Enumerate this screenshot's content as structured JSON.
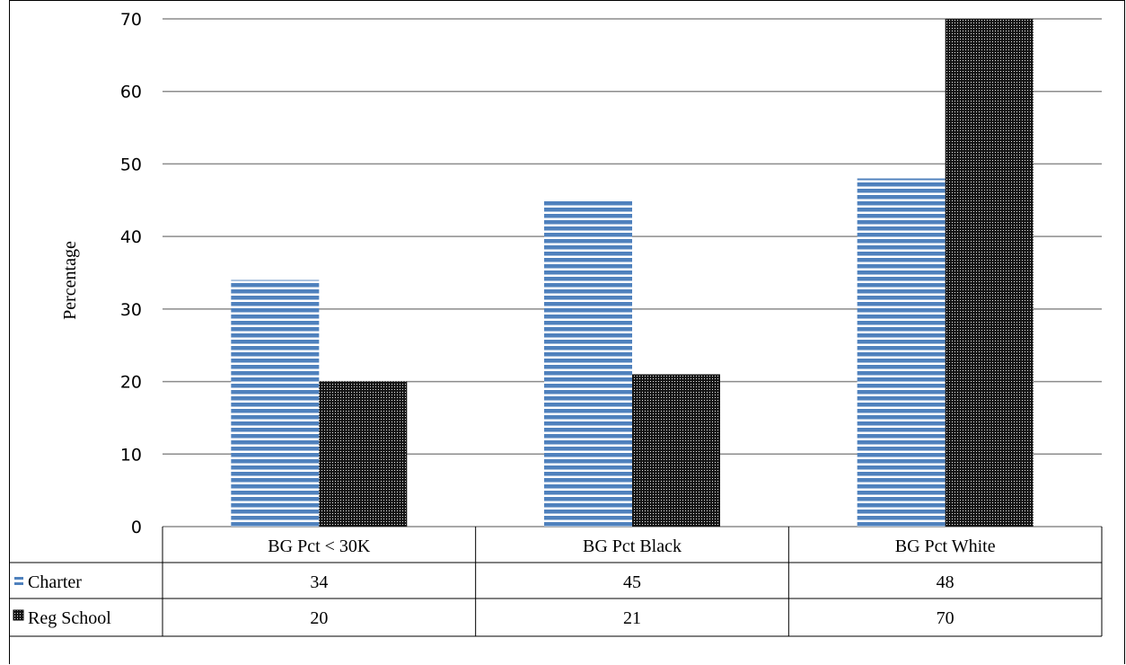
{
  "chart_data": {
    "type": "bar",
    "ylabel": "Percentage",
    "ylim": [
      0,
      70
    ],
    "yticks": [
      0,
      10,
      20,
      30,
      40,
      50,
      60,
      70
    ],
    "grid": true,
    "legend": "data-table",
    "categories": [
      "BG Pct < 30K",
      "BG Pct Black",
      "BG Pct White"
    ],
    "series": [
      {
        "name": "Charter",
        "values": [
          34,
          45,
          48
        ],
        "color": "#4f81bd",
        "pattern": "horizontal-stripes"
      },
      {
        "name": "Reg School",
        "values": [
          20,
          21,
          70
        ],
        "color": "#1a1a1a",
        "pattern": "dots"
      }
    ],
    "table": {
      "rows": [
        {
          "label": "Charter",
          "cells": [
            "34",
            "45",
            "48"
          ]
        },
        {
          "label": "Reg School",
          "cells": [
            "20",
            "21",
            "70"
          ]
        }
      ]
    }
  }
}
